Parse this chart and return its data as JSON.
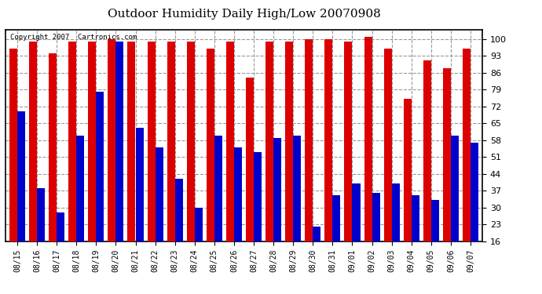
{
  "title": "Outdoor Humidity Daily High/Low 20070908",
  "copyright": "Copyright 2007  Cartronics.com",
  "dates": [
    "08/15",
    "08/16",
    "08/17",
    "08/18",
    "08/19",
    "08/20",
    "08/21",
    "08/22",
    "08/23",
    "08/24",
    "08/25",
    "08/26",
    "08/27",
    "08/28",
    "08/29",
    "08/30",
    "08/31",
    "09/01",
    "09/02",
    "09/03",
    "09/04",
    "09/05",
    "09/06",
    "09/07"
  ],
  "highs": [
    96,
    99,
    94,
    99,
    99,
    100,
    99,
    99,
    99,
    99,
    96,
    99,
    84,
    99,
    99,
    100,
    100,
    99,
    101,
    96,
    75,
    91,
    88,
    96
  ],
  "lows": [
    70,
    38,
    28,
    60,
    78,
    99,
    63,
    55,
    42,
    30,
    60,
    55,
    53,
    59,
    60,
    22,
    35,
    40,
    36,
    40,
    35,
    33,
    60,
    57
  ],
  "high_color": "#dd0000",
  "low_color": "#0000cc",
  "bg_color": "#ffffff",
  "plot_bg_color": "#ffffff",
  "grid_color": "#999999",
  "yticks": [
    16,
    23,
    30,
    37,
    44,
    51,
    58,
    65,
    72,
    79,
    86,
    93,
    100
  ],
  "ylim": [
    16,
    104
  ],
  "bar_width": 0.4
}
